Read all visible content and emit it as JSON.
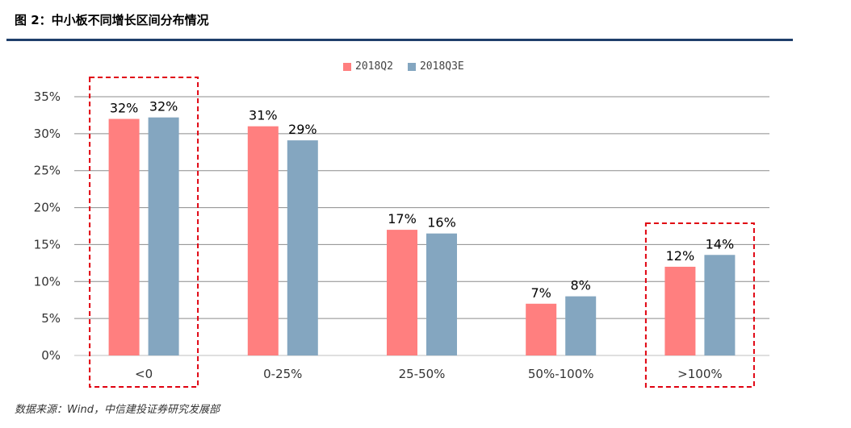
{
  "header": {
    "title": "图 2：中小板不同增长区间分布情况"
  },
  "footer": {
    "source": "数据来源：Wind，中信建投证券研究发展部"
  },
  "colors": {
    "series_2018Q2": "#ff7f7f",
    "series_2018Q3E": "#84a6c0",
    "highlight": "#e0000f",
    "header_rule": "#1f3f6b"
  },
  "chart_data": {
    "type": "bar",
    "categories": [
      "<0",
      "0-25%",
      "25-50%",
      "50%-100%",
      ">100%"
    ],
    "series": [
      {
        "name": "2018Q2",
        "values": [
          32,
          31,
          17,
          7,
          12
        ],
        "labels": [
          "32%",
          "31%",
          "17%",
          "7%",
          "12%"
        ]
      },
      {
        "name": "2018Q3E",
        "values": [
          32.2,
          29.1,
          16.5,
          8,
          13.6
        ],
        "labels": [
          "32%",
          "29%",
          "16%",
          "8%",
          "14%"
        ]
      }
    ],
    "ylim": [
      0,
      35
    ],
    "yticks": [
      "0%",
      "5%",
      "10%",
      "15%",
      "20%",
      "25%",
      "30%",
      "35%"
    ],
    "grid": true,
    "legend": "top-center",
    "highlighted_categories": [
      "<0",
      ">100%"
    ]
  }
}
